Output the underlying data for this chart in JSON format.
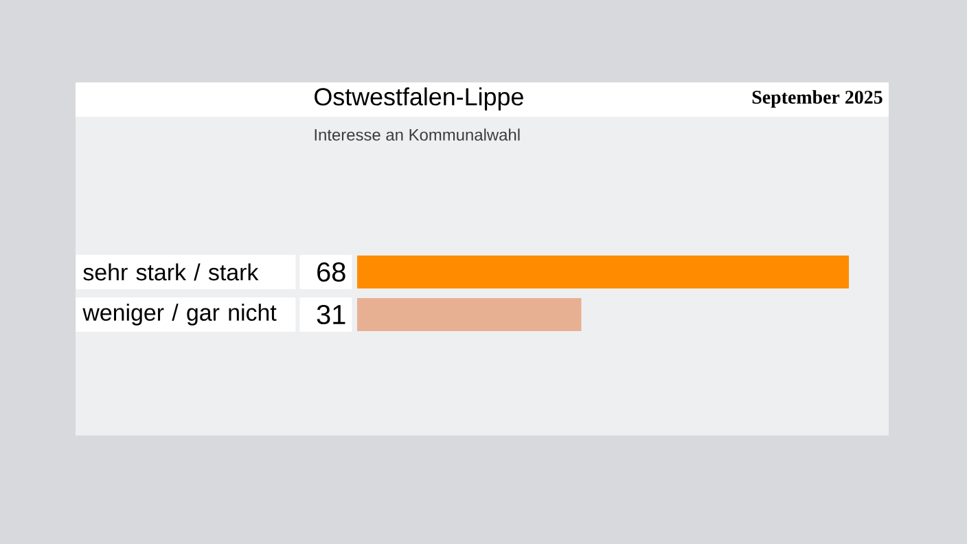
{
  "chart_data": {
    "type": "bar",
    "orientation": "horizontal",
    "title": "Ostwestfalen-Lippe",
    "subtitle": "Interesse an Kommunalwahl",
    "categories": [
      "sehr stark / stark",
      "weniger / gar nicht"
    ],
    "values": [
      68,
      31
    ],
    "colors": [
      "#ff8c00",
      "#e8b092"
    ],
    "data_labels": true,
    "annotations": [
      "September 2025"
    ]
  }
}
